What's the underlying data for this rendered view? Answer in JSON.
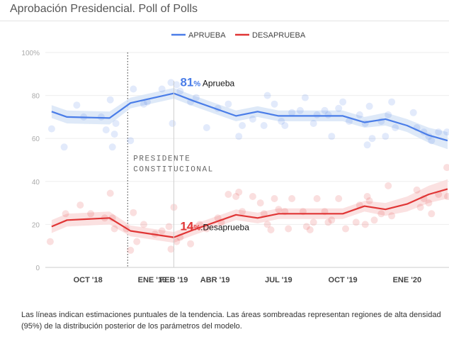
{
  "page": {
    "title": "Aprobación Presidencial. Poll of Polls",
    "note": "Las líneas indican estimaciones puntuales de la tendencia. Las áreas sombreadas representan regiones de alta densidad (95%) de la distribución posterior de los parámetros del modelo."
  },
  "colors": {
    "aprueba": "#4a7de8",
    "desaprueba": "#e03535",
    "aprueba_band": "#d8e5f7",
    "desaprueba_band": "#fadcdc"
  },
  "chart_data": {
    "type": "line",
    "title": "Aprobación Presidencial. Poll of Polls",
    "xlabel": "",
    "ylabel": "",
    "xlim": [
      "2018-08",
      "2020-03"
    ],
    "ylim": [
      0,
      100
    ],
    "y_ticks": [
      "0",
      "20",
      "40",
      "60",
      "80",
      "100%"
    ],
    "x_ticks": [
      {
        "label": "OCT '18",
        "x": "2018-10"
      },
      {
        "label": "ENE '19",
        "x": "2019-01"
      },
      {
        "label": "FEB '19",
        "x": "2019-02"
      },
      {
        "label": "ABR '19",
        "x": "2019-04"
      },
      {
        "label": "JUL '19",
        "x": "2019-07"
      },
      {
        "label": "OCT '19",
        "x": "2019-10"
      },
      {
        "label": "ENE '20",
        "x": "2020-01"
      }
    ],
    "grid": true,
    "legend_position": "top-center",
    "series": [
      {
        "name": "APRUEBA",
        "color": "#4a7de8",
        "points": [
          {
            "x": "2018-08-10",
            "y": 72.5
          },
          {
            "x": "2018-09-01",
            "y": 70
          },
          {
            "x": "2018-11-01",
            "y": 69.5
          },
          {
            "x": "2018-12-01",
            "y": 76.5
          },
          {
            "x": "2019-02-01",
            "y": 81
          },
          {
            "x": "2019-03-01",
            "y": 77.5
          },
          {
            "x": "2019-05-01",
            "y": 70.5
          },
          {
            "x": "2019-06-01",
            "y": 72.5
          },
          {
            "x": "2019-07-01",
            "y": 70.5
          },
          {
            "x": "2019-10-01",
            "y": 70.5
          },
          {
            "x": "2019-11-01",
            "y": 67.5
          },
          {
            "x": "2019-12-01",
            "y": 69
          },
          {
            "x": "2020-01-01",
            "y": 66
          },
          {
            "x": "2020-02-01",
            "y": 61.5
          },
          {
            "x": "2020-02-28",
            "y": 59
          }
        ],
        "band_upper": [
          75.5,
          73,
          72.5,
          79,
          83.5,
          80,
          73,
          75,
          73,
          73,
          70,
          72,
          69,
          65,
          63
        ],
        "band_lower": [
          69.5,
          67,
          66.5,
          74,
          78.5,
          75,
          68,
          70,
          68,
          68,
          65,
          66,
          63,
          58,
          55
        ],
        "polls": [
          {
            "x": "2018-08-10",
            "y": 64.5
          },
          {
            "x": "2018-08-28",
            "y": 56
          },
          {
            "x": "2018-09-15",
            "y": 75.5
          },
          {
            "x": "2018-09-25",
            "y": 70
          },
          {
            "x": "2018-10-20",
            "y": 70
          },
          {
            "x": "2018-10-27",
            "y": 64
          },
          {
            "x": "2018-11-02",
            "y": 78
          },
          {
            "x": "2018-11-05",
            "y": 56
          },
          {
            "x": "2018-11-08",
            "y": 62
          },
          {
            "x": "2018-11-10",
            "y": 67
          },
          {
            "x": "2018-12-01",
            "y": 59
          },
          {
            "x": "2018-12-05",
            "y": 83
          },
          {
            "x": "2018-12-20",
            "y": 76
          },
          {
            "x": "2018-12-25",
            "y": 77
          },
          {
            "x": "2019-01-15",
            "y": 83
          },
          {
            "x": "2019-01-28",
            "y": 86
          },
          {
            "x": "2019-01-30",
            "y": 67
          },
          {
            "x": "2019-02-05",
            "y": 85
          },
          {
            "x": "2019-02-10",
            "y": 82
          },
          {
            "x": "2019-02-25",
            "y": 77
          },
          {
            "x": "2019-03-05",
            "y": 79
          },
          {
            "x": "2019-03-20",
            "y": 65
          },
          {
            "x": "2019-04-05",
            "y": 74
          },
          {
            "x": "2019-04-20",
            "y": 76
          },
          {
            "x": "2019-05-05",
            "y": 61
          },
          {
            "x": "2019-05-10",
            "y": 66
          },
          {
            "x": "2019-05-25",
            "y": 69
          },
          {
            "x": "2019-06-10",
            "y": 66
          },
          {
            "x": "2019-06-15",
            "y": 80
          },
          {
            "x": "2019-06-25",
            "y": 76
          },
          {
            "x": "2019-07-05",
            "y": 68
          },
          {
            "x": "2019-07-10",
            "y": 66
          },
          {
            "x": "2019-07-20",
            "y": 72
          },
          {
            "x": "2019-08-01",
            "y": 73
          },
          {
            "x": "2019-08-08",
            "y": 79
          },
          {
            "x": "2019-08-20",
            "y": 67
          },
          {
            "x": "2019-08-25",
            "y": 71
          },
          {
            "x": "2019-09-05",
            "y": 73
          },
          {
            "x": "2019-09-10",
            "y": 71
          },
          {
            "x": "2019-09-15",
            "y": 61
          },
          {
            "x": "2019-09-25",
            "y": 74
          },
          {
            "x": "2019-10-01",
            "y": 77
          },
          {
            "x": "2019-10-10",
            "y": 68
          },
          {
            "x": "2019-10-25",
            "y": 71
          },
          {
            "x": "2019-11-02",
            "y": 67
          },
          {
            "x": "2019-11-05",
            "y": 57
          },
          {
            "x": "2019-11-08",
            "y": 75
          },
          {
            "x": "2019-11-12",
            "y": 60
          },
          {
            "x": "2019-11-25",
            "y": 68
          },
          {
            "x": "2019-12-01",
            "y": 61
          },
          {
            "x": "2019-12-05",
            "y": 71
          },
          {
            "x": "2019-12-10",
            "y": 77
          },
          {
            "x": "2019-12-15",
            "y": 65
          },
          {
            "x": "2020-01-10",
            "y": 72
          },
          {
            "x": "2020-01-15",
            "y": 65
          },
          {
            "x": "2020-01-25",
            "y": 63
          },
          {
            "x": "2020-02-01",
            "y": 61
          },
          {
            "x": "2020-02-05",
            "y": 59
          },
          {
            "x": "2020-02-15",
            "y": 63
          },
          {
            "x": "2020-02-27",
            "y": 63
          }
        ]
      },
      {
        "name": "DESAPRUEBA",
        "color": "#e03535",
        "points": [
          {
            "x": "2018-08-10",
            "y": 19
          },
          {
            "x": "2018-09-01",
            "y": 22
          },
          {
            "x": "2018-11-01",
            "y": 23
          },
          {
            "x": "2018-12-01",
            "y": 17
          },
          {
            "x": "2019-02-01",
            "y": 14
          },
          {
            "x": "2019-03-01",
            "y": 17.5
          },
          {
            "x": "2019-05-01",
            "y": 24.5
          },
          {
            "x": "2019-06-01",
            "y": 23
          },
          {
            "x": "2019-07-01",
            "y": 25
          },
          {
            "x": "2019-10-01",
            "y": 25
          },
          {
            "x": "2019-11-01",
            "y": 28.5
          },
          {
            "x": "2019-12-01",
            "y": 27
          },
          {
            "x": "2020-01-01",
            "y": 29.5
          },
          {
            "x": "2020-02-01",
            "y": 34
          },
          {
            "x": "2020-02-28",
            "y": 36.5
          }
        ],
        "band_upper": [
          22,
          25,
          26,
          19.5,
          16.5,
          20,
          27,
          25.5,
          27.5,
          27.5,
          31,
          30,
          33,
          38,
          41
        ],
        "band_lower": [
          16,
          19,
          20,
          14.5,
          11.5,
          15,
          22,
          20.5,
          22.5,
          22.5,
          26,
          24,
          26,
          30,
          32
        ],
        "polls": [
          {
            "x": "2018-08-08",
            "y": 12
          },
          {
            "x": "2018-08-30",
            "y": 25
          },
          {
            "x": "2018-09-20",
            "y": 29
          },
          {
            "x": "2018-10-05",
            "y": 25
          },
          {
            "x": "2018-10-25",
            "y": 23
          },
          {
            "x": "2018-11-02",
            "y": 34.5
          },
          {
            "x": "2018-11-05",
            "y": 23
          },
          {
            "x": "2018-11-08",
            "y": 18
          },
          {
            "x": "2018-11-25",
            "y": 18
          },
          {
            "x": "2018-12-01",
            "y": 8
          },
          {
            "x": "2018-12-05",
            "y": 25.5
          },
          {
            "x": "2018-12-10",
            "y": 12
          },
          {
            "x": "2018-12-20",
            "y": 20
          },
          {
            "x": "2019-01-05",
            "y": 15.5
          },
          {
            "x": "2019-01-15",
            "y": 17
          },
          {
            "x": "2019-01-25",
            "y": 19
          },
          {
            "x": "2019-01-28",
            "y": 8.5
          },
          {
            "x": "2019-02-01",
            "y": 28
          },
          {
            "x": "2019-02-05",
            "y": 12
          },
          {
            "x": "2019-02-10",
            "y": 14
          },
          {
            "x": "2019-02-25",
            "y": 11
          },
          {
            "x": "2019-03-10",
            "y": 20
          },
          {
            "x": "2019-03-20",
            "y": 18
          },
          {
            "x": "2019-04-05",
            "y": 23
          },
          {
            "x": "2019-04-10",
            "y": 21
          },
          {
            "x": "2019-04-20",
            "y": 34
          },
          {
            "x": "2019-05-01",
            "y": 33
          },
          {
            "x": "2019-05-05",
            "y": 35
          },
          {
            "x": "2019-05-10",
            "y": 26
          },
          {
            "x": "2019-05-25",
            "y": 33
          },
          {
            "x": "2019-06-05",
            "y": 30
          },
          {
            "x": "2019-06-10",
            "y": 25
          },
          {
            "x": "2019-06-15",
            "y": 20
          },
          {
            "x": "2019-06-20",
            "y": 17.5
          },
          {
            "x": "2019-06-25",
            "y": 32
          },
          {
            "x": "2019-07-01",
            "y": 27
          },
          {
            "x": "2019-07-10",
            "y": 26
          },
          {
            "x": "2019-07-15",
            "y": 18
          },
          {
            "x": "2019-07-20",
            "y": 32
          },
          {
            "x": "2019-08-05",
            "y": 26
          },
          {
            "x": "2019-08-10",
            "y": 19
          },
          {
            "x": "2019-08-15",
            "y": 17.5
          },
          {
            "x": "2019-08-20",
            "y": 21
          },
          {
            "x": "2019-08-25",
            "y": 32
          },
          {
            "x": "2019-09-05",
            "y": 26
          },
          {
            "x": "2019-09-10",
            "y": 21
          },
          {
            "x": "2019-09-15",
            "y": 22
          },
          {
            "x": "2019-09-25",
            "y": 32
          },
          {
            "x": "2019-10-05",
            "y": 18
          },
          {
            "x": "2019-10-20",
            "y": 21
          },
          {
            "x": "2019-10-25",
            "y": 29
          },
          {
            "x": "2019-11-02",
            "y": 20
          },
          {
            "x": "2019-11-05",
            "y": 33
          },
          {
            "x": "2019-11-08",
            "y": 31
          },
          {
            "x": "2019-11-15",
            "y": 22
          },
          {
            "x": "2019-11-25",
            "y": 25
          },
          {
            "x": "2019-12-05",
            "y": 38
          },
          {
            "x": "2019-12-10",
            "y": 24
          },
          {
            "x": "2020-01-15",
            "y": 36
          },
          {
            "x": "2020-01-20",
            "y": 28
          },
          {
            "x": "2020-01-25",
            "y": 32
          },
          {
            "x": "2020-02-01",
            "y": 30
          },
          {
            "x": "2020-02-05",
            "y": 25
          },
          {
            "x": "2020-02-15",
            "y": 34
          },
          {
            "x": "2020-02-27",
            "y": 46.5
          },
          {
            "x": "2020-02-28",
            "y": 33
          }
        ]
      }
    ],
    "annotations": [
      {
        "series": "APRUEBA",
        "pct": "81%",
        "label": "Aprueba",
        "x": "2019-02-01",
        "y": 81
      },
      {
        "series": "DESAPRUEBA",
        "pct": "14%",
        "label": ".Desaprueba",
        "x": "2019-02-01",
        "y": 14
      }
    ],
    "event": {
      "x": "2018-12-01",
      "line1": "PRESIDENTE",
      "line2": "CONSTITUCIONAL"
    }
  }
}
